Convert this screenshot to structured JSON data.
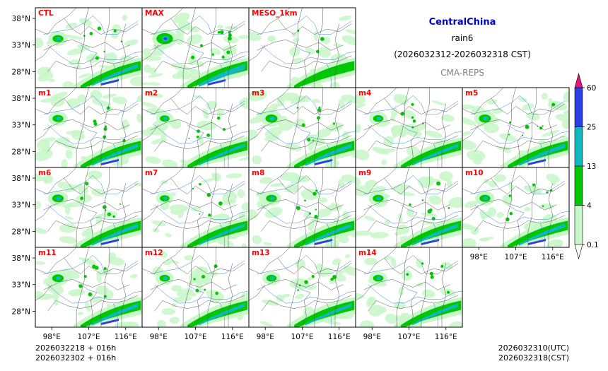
{
  "header": {
    "region": "CentralChina",
    "variable": "rain6",
    "period": "(2026032312-2026032318 CST)",
    "system": "CMA-REPS"
  },
  "footer": {
    "left_line1": "2026032218  +  016h",
    "left_line2": "2026032302  +  016h",
    "right_line1": "2026032310(UTC)",
    "right_line2": "2026032318(CST)"
  },
  "chart_data": {
    "type": "heatmap",
    "title": "CentralChina rain6 (2026032312-2026032318 CST)",
    "panels": [
      {
        "name": "CTL",
        "row": 0,
        "col": 0,
        "intensity": 0.85
      },
      {
        "name": "MAX",
        "row": 0,
        "col": 1,
        "intensity": 1.3
      },
      {
        "name": "MESO_1km",
        "row": 0,
        "col": 2,
        "intensity": 0.35
      },
      {
        "name": "m1",
        "row": 1,
        "col": 0,
        "intensity": 0.85
      },
      {
        "name": "m2",
        "row": 1,
        "col": 1,
        "intensity": 0.75
      },
      {
        "name": "m3",
        "row": 1,
        "col": 2,
        "intensity": 0.95
      },
      {
        "name": "m4",
        "row": 1,
        "col": 3,
        "intensity": 0.8
      },
      {
        "name": "m5",
        "row": 1,
        "col": 4,
        "intensity": 0.95
      },
      {
        "name": "m6",
        "row": 2,
        "col": 0,
        "intensity": 0.9
      },
      {
        "name": "m7",
        "row": 2,
        "col": 1,
        "intensity": 0.75
      },
      {
        "name": "m8",
        "row": 2,
        "col": 2,
        "intensity": 0.85
      },
      {
        "name": "m9",
        "row": 2,
        "col": 3,
        "intensity": 0.85
      },
      {
        "name": "m10",
        "row": 2,
        "col": 4,
        "intensity": 0.85
      },
      {
        "name": "m11",
        "row": 3,
        "col": 0,
        "intensity": 0.9
      },
      {
        "name": "m12",
        "row": 3,
        "col": 1,
        "intensity": 0.8
      },
      {
        "name": "m13",
        "row": 3,
        "col": 2,
        "intensity": 0.8
      },
      {
        "name": "m14",
        "row": 3,
        "col": 3,
        "intensity": 0.8
      }
    ],
    "x_ticks": [
      "98°E",
      "107°E",
      "116°E"
    ],
    "y_ticks": [
      "38°N",
      "33°N",
      "28°N"
    ],
    "lon_range": [
      94,
      120
    ],
    "lat_range": [
      25,
      40
    ],
    "colorbar": {
      "ticks": [
        "0.1",
        "4",
        "13",
        "25",
        "60"
      ],
      "bounds": [
        0.1,
        4,
        13,
        25,
        60
      ],
      "colors": [
        "#c8f7c8",
        "#00c800",
        "#12b8c0",
        "#2b3fe8"
      ],
      "over_color": "#e8147a",
      "under_color": "#ffffff"
    }
  }
}
